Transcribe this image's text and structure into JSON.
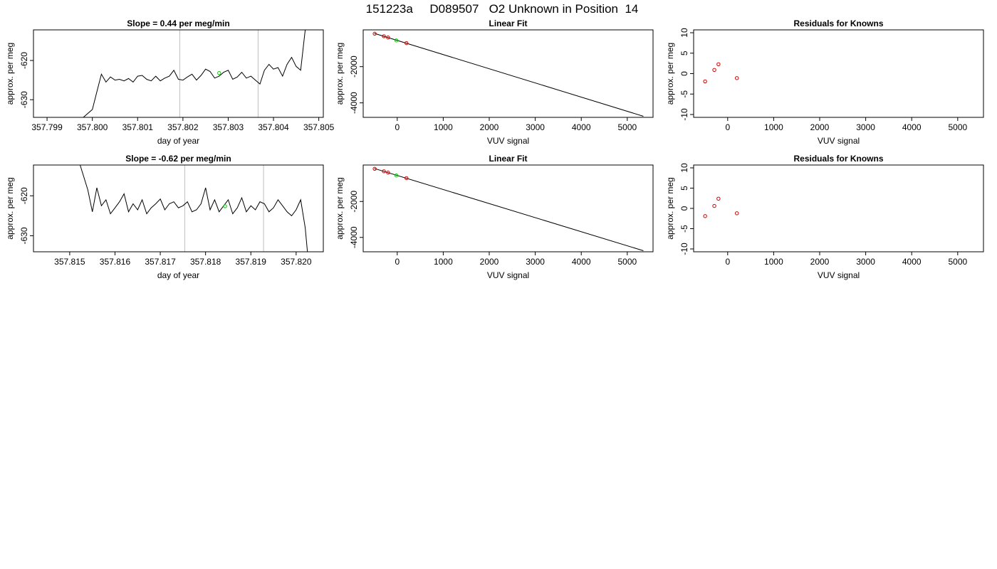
{
  "figure": {
    "title": "151223a     D089507   O2 Unknown in Position  14"
  },
  "colors": {
    "trace": "#000000",
    "vline": "#bebebe",
    "known_points": "#cc0000",
    "unknown_point": "#00cc00",
    "frame": "#000000"
  },
  "chart_data": [
    {
      "type": "line",
      "title": "Slope =  0.44  per meg/min",
      "xlabel": "day of year",
      "ylabel": "approx. per meg",
      "xlim": [
        357.7987,
        357.8051
      ],
      "ylim": [
        -634.5,
        -612.2
      ],
      "xticks": [
        357.799,
        357.8,
        357.801,
        357.802,
        357.803,
        357.804,
        357.805
      ],
      "xtick_labels": [
        "357.799",
        "357.800",
        "357.801",
        "357.802",
        "357.803",
        "357.804",
        "357.805"
      ],
      "yticks": [
        -620,
        -630
      ],
      "ytick_labels": [
        "-620",
        "-630"
      ],
      "vlines": [
        357.80193,
        357.80366
      ],
      "series": [
        {
          "x": [
            357.7998,
            357.8,
            357.8001,
            357.8002,
            357.8003,
            357.8004,
            357.8005,
            357.8006,
            357.8007,
            357.8008,
            357.8009,
            357.801,
            357.8011,
            357.8012,
            357.8013,
            357.8014,
            357.8015,
            357.8016,
            357.8017,
            357.8018,
            357.8019,
            357.802,
            357.8021,
            357.8022,
            357.8023,
            357.8024,
            357.8025,
            357.8026,
            357.8027,
            357.8028,
            357.8029,
            357.803,
            357.8031,
            357.8032,
            357.8033,
            357.8034,
            357.8035,
            357.8036,
            357.8037,
            357.8038,
            357.8039,
            357.804,
            357.8041,
            357.8042,
            357.8043,
            357.8044,
            357.8045,
            357.8046,
            357.8047
          ],
          "y": [
            -634.5,
            -632.5,
            -628.0,
            -623.5,
            -625.5,
            -624.2,
            -625.0,
            -624.8,
            -625.2,
            -624.6,
            -625.5,
            -624.0,
            -623.8,
            -624.8,
            -625.2,
            -624.0,
            -625.2,
            -624.5,
            -624.0,
            -622.5,
            -624.8,
            -625.0,
            -624.2,
            -623.5,
            -625.0,
            -623.8,
            -622.2,
            -622.8,
            -624.5,
            -624.0,
            -623.0,
            -622.5,
            -624.8,
            -624.2,
            -623.0,
            -624.5,
            -624.0,
            -625.0,
            -626.0,
            -622.5,
            -621.0,
            -622.2,
            -621.8,
            -624.0,
            -621.0,
            -619.2,
            -621.5,
            -622.5,
            -612.2
          ]
        }
      ],
      "highlight_point": {
        "x": 357.8028,
        "y": -623.2
      }
    },
    {
      "type": "scatter",
      "title": "Linear Fit",
      "xlabel": "VUV signal",
      "ylabel": "approx. per meg",
      "xlim": [
        -740,
        5560
      ],
      "ylim": [
        -4800,
        30
      ],
      "xticks": [
        0,
        1000,
        2000,
        3000,
        4000,
        5000
      ],
      "xtick_labels": [
        "0",
        "1000",
        "2000",
        "3000",
        "4000",
        "5000"
      ],
      "yticks": [
        -2000,
        -4000
      ],
      "ytick_labels": [
        "-2000",
        "-4000"
      ],
      "fit_line": {
        "x": [
          -500,
          5350
        ],
        "y": [
          -160,
          -4740
        ]
      },
      "known_points": {
        "x": [
          -490,
          -290,
          -200,
          200
        ],
        "y": [
          -180,
          -320,
          -390,
          -700
        ]
      },
      "unknown_points": {
        "x": [
          -20
        ],
        "y": [
          -550
        ]
      }
    },
    {
      "type": "scatter",
      "title": "Residuals for Knowns",
      "xlabel": "VUV signal",
      "ylabel": "approx. per meg",
      "xlim": [
        -740,
        5560
      ],
      "ylim": [
        -10.7,
        10.7
      ],
      "xticks": [
        0,
        1000,
        2000,
        3000,
        4000,
        5000
      ],
      "xtick_labels": [
        "0",
        "1000",
        "2000",
        "3000",
        "4000",
        "5000"
      ],
      "yticks": [
        10,
        5,
        0,
        -5,
        -10
      ],
      "ytick_labels": [
        "10",
        "5",
        "0",
        "-5",
        "-10"
      ],
      "known_points": {
        "x": [
          -490,
          -290,
          -200,
          200
        ],
        "y": [
          -1.9,
          0.9,
          2.3,
          -1.1
        ]
      }
    },
    {
      "type": "line",
      "title": "Slope =  -0.62  per meg/min",
      "xlabel": "day of year",
      "ylabel": "approx. per meg",
      "xlim": [
        357.8142,
        357.8206
      ],
      "ylim": [
        -634.0,
        -612.3
      ],
      "xticks": [
        357.815,
        357.816,
        357.817,
        357.818,
        357.819,
        357.82
      ],
      "xtick_labels": [
        "357.815",
        "357.816",
        "357.817",
        "357.818",
        "357.819",
        "357.820"
      ],
      "yticks": [
        -620,
        -630
      ],
      "ytick_labels": [
        "-620",
        "-630"
      ],
      "vlines": [
        357.81754,
        357.81928
      ],
      "series": [
        {
          "x": [
            357.81523,
            357.8154,
            357.8155,
            357.8156,
            357.8157,
            357.8158,
            357.8159,
            357.816,
            357.8161,
            357.8162,
            357.8163,
            357.8164,
            357.8165,
            357.8166,
            357.8167,
            357.8168,
            357.8169,
            357.817,
            357.8171,
            357.8172,
            357.8173,
            357.8174,
            357.8175,
            357.8176,
            357.8177,
            357.8178,
            357.8179,
            357.818,
            357.8181,
            357.8182,
            357.8183,
            357.8184,
            357.8185,
            357.8186,
            357.8187,
            357.8188,
            357.8189,
            357.819,
            357.8191,
            357.8192,
            357.8193,
            357.8194,
            357.8195,
            357.8196,
            357.8197,
            357.8198,
            357.8199,
            357.82,
            357.8201,
            357.8202,
            357.82025
          ],
          "y": [
            -612.3,
            -618.5,
            -624.0,
            -618.0,
            -622.5,
            -621.0,
            -624.5,
            -623.0,
            -621.5,
            -619.5,
            -624.0,
            -622.0,
            -623.5,
            -621.0,
            -624.5,
            -623.0,
            -622.0,
            -620.8,
            -623.5,
            -622.0,
            -621.5,
            -623.0,
            -622.5,
            -621.5,
            -624.0,
            -623.5,
            -622.0,
            -618.0,
            -623.5,
            -621.0,
            -624.0,
            -622.5,
            -621.0,
            -624.5,
            -623.0,
            -620.5,
            -624.0,
            -622.5,
            -623.5,
            -621.5,
            -622.0,
            -624.0,
            -623.0,
            -621.0,
            -622.5,
            -624.0,
            -625.0,
            -623.5,
            -621.0,
            -628.0,
            -634.0
          ]
        }
      ],
      "highlight_point": {
        "x": 357.81843,
        "y": -622.6
      }
    },
    {
      "type": "scatter",
      "title": "Linear Fit",
      "xlabel": "VUV signal",
      "ylabel": "approx. per meg",
      "xlim": [
        -740,
        5560
      ],
      "ylim": [
        -4800,
        30
      ],
      "xticks": [
        0,
        1000,
        2000,
        3000,
        4000,
        5000
      ],
      "xtick_labels": [
        "0",
        "1000",
        "2000",
        "3000",
        "4000",
        "5000"
      ],
      "yticks": [
        -2000,
        -4000
      ],
      "ytick_labels": [
        "-2000",
        "-4000"
      ],
      "fit_line": {
        "x": [
          -500,
          5350
        ],
        "y": [
          -160,
          -4740
        ]
      },
      "known_points": {
        "x": [
          -490,
          -290,
          -200,
          200
        ],
        "y": [
          -180,
          -320,
          -390,
          -700
        ]
      },
      "unknown_points": {
        "x": [
          -20
        ],
        "y": [
          -550
        ]
      }
    },
    {
      "type": "scatter",
      "title": "Residuals for Knowns",
      "xlabel": "VUV signal",
      "ylabel": "approx. per meg",
      "xlim": [
        -740,
        5560
      ],
      "ylim": [
        -10.7,
        10.7
      ],
      "xticks": [
        0,
        1000,
        2000,
        3000,
        4000,
        5000
      ],
      "xtick_labels": [
        "0",
        "1000",
        "2000",
        "3000",
        "4000",
        "5000"
      ],
      "yticks": [
        10,
        5,
        0,
        -5,
        -10
      ],
      "ytick_labels": [
        "10",
        "5",
        "0",
        "-5",
        "-10"
      ],
      "known_points": {
        "x": [
          -490,
          -290,
          -200,
          200
        ],
        "y": [
          -1.9,
          0.6,
          2.4,
          -1.2
        ]
      }
    }
  ]
}
